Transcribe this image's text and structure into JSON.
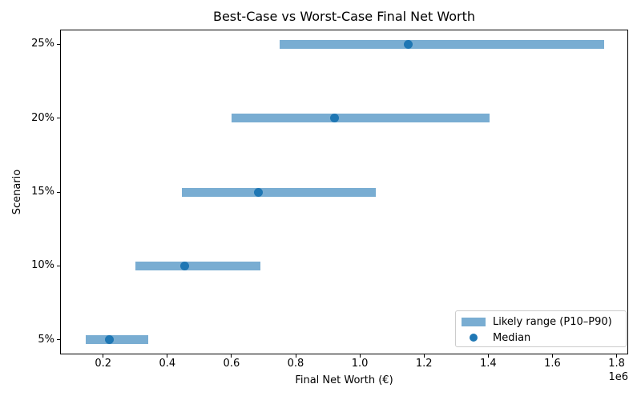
{
  "colors": {
    "range_bar": "#79add2",
    "median_dot": "#1f77b4",
    "axis": "#000000",
    "text": "#000000",
    "legend_border": "#cccccc"
  },
  "legend": {
    "items": [
      {
        "label": "Likely range (P10–P90)",
        "key": "patch"
      },
      {
        "label": "Median",
        "key": "dot"
      }
    ]
  },
  "chart_data": {
    "type": "bar",
    "orientation": "horizontal",
    "title": "Best-Case vs Worst-Case Final Net Worth",
    "xlabel": "Final Net Worth (€)",
    "ylabel": "Scenario",
    "x_offset_label": "1e6",
    "categories": [
      "5%",
      "10%",
      "15%",
      "20%",
      "25%"
    ],
    "series": [
      {
        "name": "P10 (worst case)",
        "values": [
          145000,
          300000,
          445000,
          600000,
          750000
        ]
      },
      {
        "name": "Median",
        "values": [
          220000,
          455000,
          685000,
          920000,
          1150000
        ]
      },
      {
        "name": "P90 (best case)",
        "values": [
          340000,
          690000,
          1050000,
          1405000,
          1760000
        ]
      }
    ],
    "xlim": [
      66000,
      1836000
    ],
    "ylim": [
      -0.2,
      4.2
    ],
    "x_ticks": [
      200000,
      400000,
      600000,
      800000,
      1000000,
      1200000,
      1400000,
      1600000,
      1800000
    ],
    "x_tick_labels": [
      "0.2",
      "0.4",
      "0.6",
      "0.8",
      "1.0",
      "1.2",
      "1.4",
      "1.6",
      "1.8"
    ],
    "grid": false,
    "legend_position": "lower right"
  }
}
